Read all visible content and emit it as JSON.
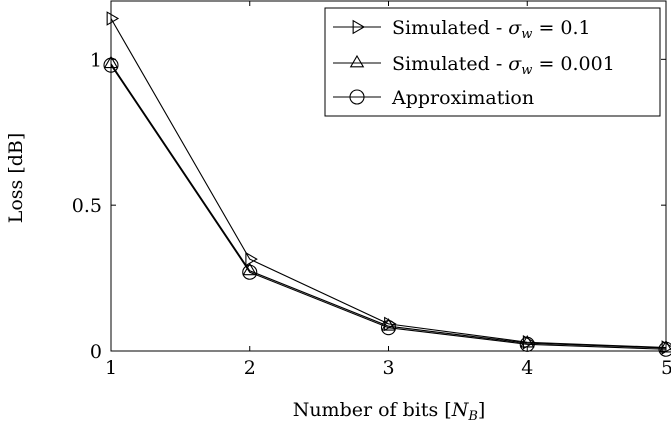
{
  "chart_data": {
    "type": "line",
    "title": "",
    "xlabel": "Number of bits [N_B]",
    "ylabel": "Loss [dB]",
    "xlim": [
      1,
      5
    ],
    "ylim": [
      0,
      1.2
    ],
    "grid": false,
    "legend_position": "top-right",
    "x": [
      1,
      2,
      3,
      4,
      5
    ],
    "x_ticks": [
      "1",
      "2",
      "3",
      "4",
      "5"
    ],
    "y_ticks": [
      {
        "value": 0,
        "label": "0"
      },
      {
        "value": 0.5,
        "label": "0.5"
      },
      {
        "value": 1,
        "label": "1"
      }
    ],
    "series": [
      {
        "name": "Simulated - σ_w = 0.1",
        "marker": "triangle-right",
        "color": "#000000",
        "values": [
          1.14,
          0.315,
          0.093,
          0.03,
          0.012
        ]
      },
      {
        "name": "Simulated - σ_w = 0.001",
        "marker": "triangle-up",
        "color": "#000000",
        "values": [
          0.985,
          0.275,
          0.085,
          0.027,
          0.01
        ]
      },
      {
        "name": "Approximation",
        "marker": "circle",
        "color": "#000000",
        "values": [
          0.98,
          0.27,
          0.08,
          0.023,
          0.006
        ]
      }
    ]
  }
}
